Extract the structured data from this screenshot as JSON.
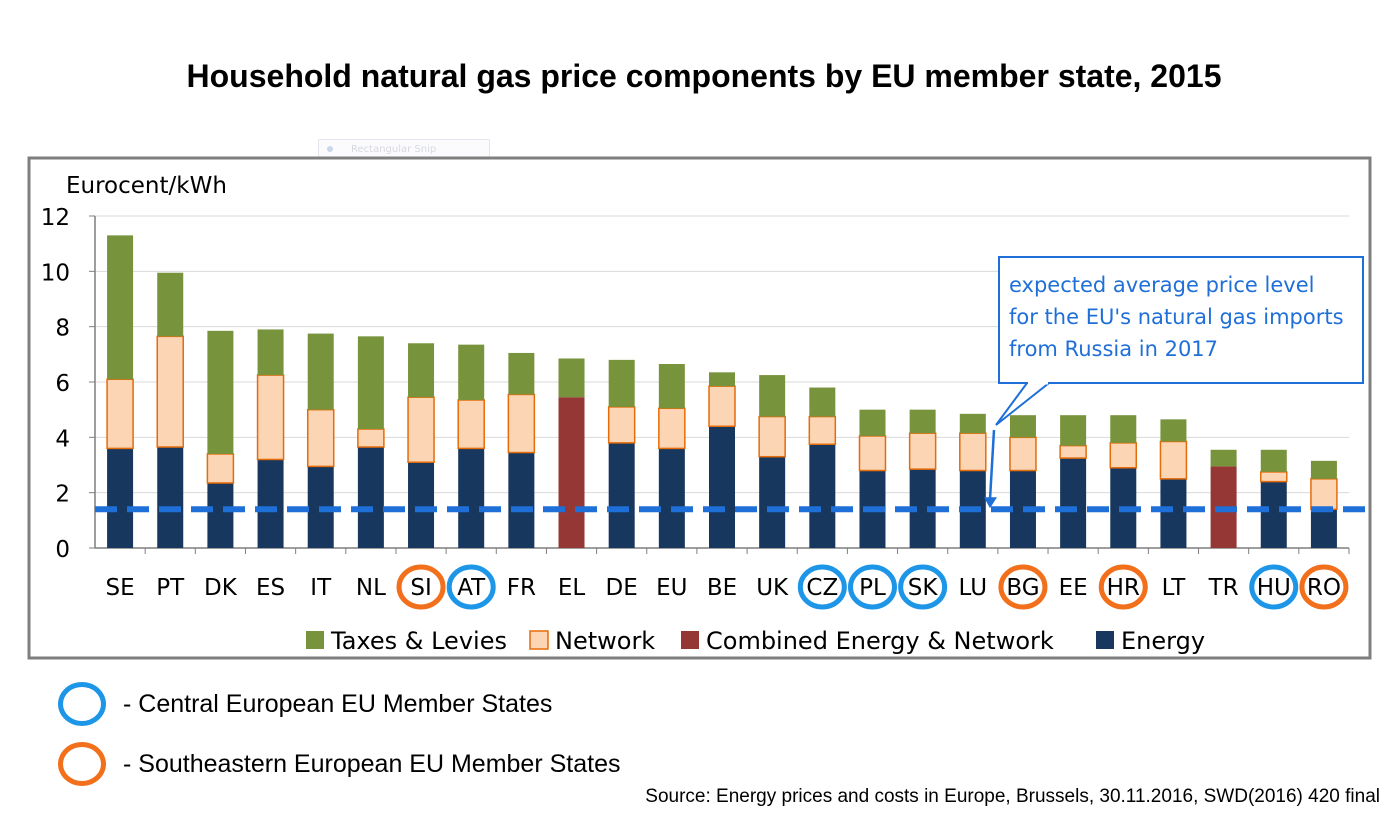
{
  "title": "Household natural gas price components by EU member state, 2015",
  "snip_label": "Rectangular Snip",
  "colors": {
    "taxes": "#77933c",
    "network": "#fcd5b5",
    "network_border": "#e46c0a",
    "combined": "#953735",
    "energy": "#17375e",
    "central_ring": "#1e96e8",
    "southeast_ring": "#f26f1b",
    "dashed_line": "#1f6fd8"
  },
  "chart_data": {
    "type": "bar",
    "stacked": true,
    "ylabel": "Eurocent/kWh",
    "ylim": [
      0,
      12
    ],
    "yticks": [
      0,
      2,
      4,
      6,
      8,
      10,
      12
    ],
    "grid": true,
    "categories": [
      "SE",
      "PT",
      "DK",
      "ES",
      "IT",
      "NL",
      "SI",
      "AT",
      "FR",
      "EL",
      "DE",
      "EU",
      "BE",
      "UK",
      "CZ",
      "PL",
      "SK",
      "LU",
      "BG",
      "EE",
      "HR",
      "LT",
      "TR",
      "HU",
      "RO"
    ],
    "series": [
      {
        "name": "Energy",
        "key": "energy",
        "values": [
          3.6,
          3.65,
          2.35,
          3.2,
          2.95,
          3.65,
          3.1,
          3.6,
          3.45,
          0,
          3.8,
          3.6,
          4.4,
          3.3,
          3.75,
          2.8,
          2.85,
          2.8,
          2.8,
          3.25,
          2.9,
          2.5,
          0,
          2.4,
          1.4
        ]
      },
      {
        "name": "Combined Energy & Network",
        "key": "combined",
        "values": [
          0,
          0,
          0,
          0,
          0,
          0,
          0,
          0,
          0,
          5.45,
          0,
          0,
          0,
          0,
          0,
          0,
          0,
          0,
          0,
          0,
          0,
          0,
          2.95,
          0,
          0
        ]
      },
      {
        "name": "Network",
        "key": "network",
        "values": [
          2.5,
          4.0,
          1.05,
          3.05,
          2.05,
          0.65,
          2.35,
          1.75,
          2.1,
          0,
          1.3,
          1.45,
          1.45,
          1.45,
          1.0,
          1.25,
          1.3,
          1.35,
          1.2,
          0.45,
          0.9,
          1.35,
          0,
          0.35,
          1.1
        ]
      },
      {
        "name": "Taxes & Levies",
        "key": "taxes",
        "values": [
          5.2,
          2.3,
          4.45,
          1.65,
          2.75,
          3.35,
          1.95,
          2.0,
          1.5,
          1.4,
          1.7,
          1.6,
          0.5,
          1.5,
          1.05,
          0.95,
          0.85,
          0.7,
          0.8,
          1.1,
          1.0,
          0.8,
          0.6,
          0.8,
          0.65
        ]
      }
    ],
    "legend_order": [
      "Taxes & Levies",
      "Network",
      "Combined Energy & Network",
      "Energy"
    ],
    "circled": {
      "central": [
        "AT",
        "CZ",
        "PL",
        "SK",
        "HU"
      ],
      "southeast": [
        "SI",
        "BG",
        "HR",
        "RO"
      ]
    },
    "reference_line": {
      "value": 1.4
    },
    "annotation": {
      "lines": [
        "expected average price level",
        "for the EU's natural gas imports",
        "from Russia in 2017"
      ],
      "pointer_value": 1.4
    }
  },
  "key": {
    "central_label": "- Central European EU Member States",
    "southeast_label": "- Southeastern European EU Member States"
  },
  "source": "Source: Energy prices and costs in Europe, Brussels, 30.11.2016, SWD(2016) 420 final"
}
